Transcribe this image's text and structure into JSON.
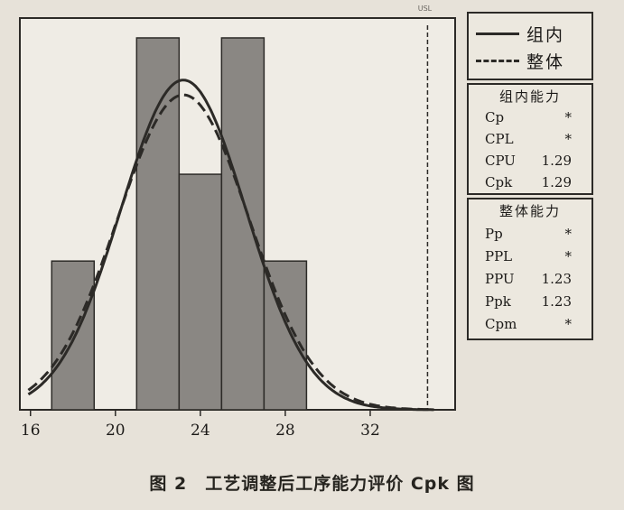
{
  "chart_data": {
    "type": "bar",
    "title": "",
    "xlabel": "",
    "ylabel": "",
    "xlim": [
      15.5,
      36
    ],
    "x_ticks": [
      16,
      20,
      24,
      28,
      32
    ],
    "bins": [
      {
        "x0": 17,
        "x1": 19,
        "count": 6
      },
      {
        "x0": 19,
        "x1": 21,
        "count": 0
      },
      {
        "x0": 21,
        "x1": 23,
        "count": 15
      },
      {
        "x0": 23,
        "x1": 25,
        "count": 9.5
      },
      {
        "x0": 25,
        "x1": 27,
        "count": 15
      },
      {
        "x0": 27,
        "x1": 29,
        "count": 6
      }
    ],
    "ylim": [
      0,
      15.8
    ],
    "series": [
      {
        "name": "组内",
        "style": "solid",
        "mean": 23.2,
        "sigma": 2.95,
        "peak": 13.3
      },
      {
        "name": "整体",
        "style": "dashed",
        "mean": 23.2,
        "sigma": 3.1,
        "peak": 12.7
      }
    ],
    "spec_limit": 34.7,
    "grid": false,
    "legend_position": "right"
  },
  "legend": {
    "items": [
      {
        "label": "组内",
        "style": "solid"
      },
      {
        "label": "整体",
        "style": "dashed"
      }
    ]
  },
  "spec_tag": "USL",
  "capability_within": {
    "title": "组内能力",
    "rows": [
      {
        "name": "Cp",
        "value": "*"
      },
      {
        "name": "CPL",
        "value": "*"
      },
      {
        "name": "CPU",
        "value": "1.29"
      },
      {
        "name": "Cpk",
        "value": "1.29"
      }
    ]
  },
  "capability_overall": {
    "title": "整体能力",
    "rows": [
      {
        "name": "Pp",
        "value": "*"
      },
      {
        "name": "PPL",
        "value": "*"
      },
      {
        "name": "PPU",
        "value": "1.23"
      },
      {
        "name": "Ppk",
        "value": "1.23"
      },
      {
        "name": "Cpm",
        "value": "*"
      }
    ]
  },
  "caption": "图 2　工艺调整后工序能力评价 Cpk 图",
  "colors": {
    "page_bg": "#e7e2d9",
    "plot_bg": "#efece5",
    "bar_fill": "#8a8783",
    "ink": "#2c2a27"
  }
}
